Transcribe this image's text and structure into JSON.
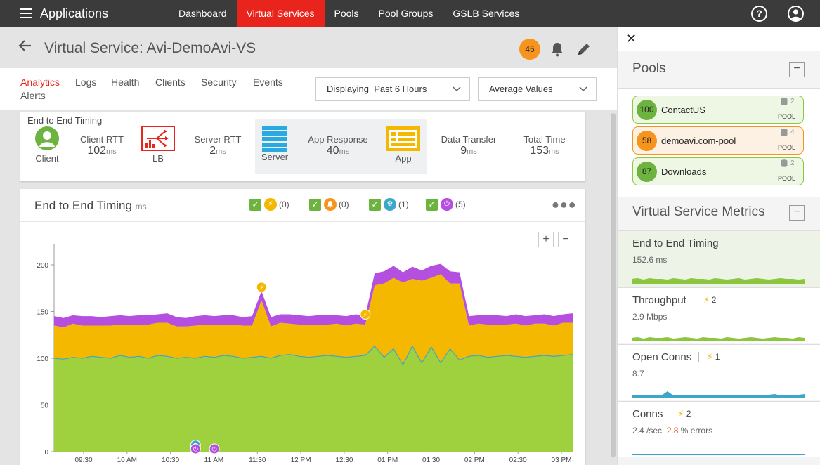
{
  "topbar": {
    "app_title": "Applications",
    "nav": [
      "Dashboard",
      "Virtual Services",
      "Pools",
      "Pool Groups",
      "GSLB Services"
    ],
    "active_nav": "Virtual Services",
    "help_icon": "?"
  },
  "header": {
    "title": "Virtual Service: Avi-DemoAvi-VS",
    "alert_count": "45"
  },
  "tabs": [
    "Analytics",
    "Logs",
    "Health",
    "Clients",
    "Security",
    "Events",
    "Alerts"
  ],
  "active_tab": "Analytics",
  "filters": {
    "time_range": "Displaying  Past 6 Hours",
    "value_mode": "Average Values"
  },
  "timing": {
    "label": "End to End Timing",
    "client": "Client",
    "client_rtt_label": "Client RTT",
    "client_rtt_value": "102",
    "lb": "LB",
    "server_rtt_label": "Server RTT",
    "server_rtt_value": "2",
    "server": "Server",
    "app_response_label": "App Response",
    "app_response_value": "40",
    "app": "App",
    "data_transfer_label": "Data Transfer",
    "data_transfer_value": "9",
    "total_time_label": "Total Time",
    "total_time_value": "153",
    "unit": "ms"
  },
  "chart_card": {
    "title": "End to End Timing",
    "unit": "ms",
    "legend": [
      {
        "icon": "bolt-icon",
        "count": "(0)",
        "color": "#f5b800"
      },
      {
        "icon": "bell-icon",
        "count": "(0)",
        "color": "#f7941d"
      },
      {
        "icon": "gear-icon",
        "count": "(1)",
        "color": "#3da7c9"
      },
      {
        "icon": "power-icon",
        "count": "(5)",
        "color": "#b44fe0"
      }
    ],
    "zoom_in": "+",
    "zoom_out": "−"
  },
  "chart_data": {
    "type": "area",
    "stacked": true,
    "yticks": [
      0,
      50,
      100,
      150,
      200
    ],
    "ylim": [
      0,
      200
    ],
    "x_tick_labels": [
      "09:30",
      "10 AM",
      "10:30",
      "11 AM",
      "11:30",
      "12 PM",
      "12:30",
      "01 PM",
      "01:30",
      "02 PM",
      "02:30",
      "03 PM"
    ],
    "series": [
      {
        "color": "#9fd13e",
        "values": [
          100,
          99,
          101,
          100,
          102,
          101,
          100,
          103,
          101,
          102,
          100,
          103,
          102,
          100,
          101,
          100,
          102,
          101,
          103,
          102,
          100,
          101,
          102,
          100,
          103,
          104,
          102,
          101,
          102,
          103,
          102,
          101,
          102,
          103,
          113,
          101,
          110,
          93,
          113,
          95,
          112,
          95,
          110,
          98,
          102,
          103,
          101,
          102,
          103,
          102,
          101,
          102,
          103,
          102,
          103,
          104
        ]
      },
      {
        "color": "#f5b800",
        "values": [
          35,
          34,
          36,
          35,
          33,
          34,
          35,
          33,
          35,
          34,
          36,
          35,
          36,
          34,
          33,
          35,
          34,
          35,
          33,
          34,
          35,
          34,
          60,
          34,
          35,
          33,
          34,
          35,
          34,
          33,
          35,
          34,
          35,
          33,
          65,
          79,
          76,
          88,
          72,
          88,
          74,
          95,
          70,
          82,
          33,
          34,
          35,
          34,
          33,
          35,
          34,
          35,
          34,
          33,
          35,
          34
        ]
      },
      {
        "color": "#b44fe0",
        "values": [
          10,
          10,
          9,
          10,
          10,
          9,
          10,
          10,
          9,
          10,
          10,
          9,
          10,
          10,
          9,
          10,
          10,
          9,
          10,
          10,
          9,
          10,
          10,
          10,
          9,
          10,
          10,
          9,
          10,
          10,
          9,
          10,
          10,
          9,
          13,
          13,
          13,
          11,
          13,
          11,
          13,
          11,
          13,
          12,
          10,
          9,
          10,
          10,
          9,
          10,
          10,
          9,
          10,
          10,
          9,
          10
        ]
      }
    ],
    "annotations": [
      {
        "icon": "bolt-icon",
        "x_index": 22,
        "y": 176
      },
      {
        "icon": "bolt-icon",
        "x_index": 33,
        "y": 147
      },
      {
        "icon": "gear-icon",
        "x_index": 15,
        "y": 7
      },
      {
        "icon": "power-icon",
        "x_index": 15,
        "y": 3
      },
      {
        "icon": "power-icon",
        "x_index": 17,
        "y": 3
      }
    ]
  },
  "right_panel": {
    "pools_title": "Pools",
    "pools": [
      {
        "score": "100",
        "name": "ContactUS",
        "count": "2",
        "label": "POOL",
        "bg": "#eef6e4",
        "border": "#8cc63f",
        "score_color": "#6db33f"
      },
      {
        "score": "58",
        "name": "demoavi.com-pool",
        "count": "4",
        "label": "POOL",
        "bg": "#fdf1e4",
        "border": "#f7941d",
        "score_color": "#f7941d"
      },
      {
        "score": "87",
        "name": "Downloads",
        "count": "2",
        "label": "POOL",
        "bg": "#eef6e4",
        "border": "#8cc63f",
        "score_color": "#6db33f"
      }
    ],
    "metrics_title": "Virtual Service Metrics",
    "metrics": [
      {
        "name": "End to End Timing",
        "value": "152.6",
        "unit": "ms",
        "alerts": "",
        "spark_color": "#8cc63f"
      },
      {
        "name": "Throughput",
        "value": "2.9",
        "unit": "Mbps",
        "alerts": "2",
        "spark_color": "#8cc63f"
      },
      {
        "name": "Open Conns",
        "value": "8.7",
        "unit": "",
        "alerts": "1",
        "spark_color": "#3da7c9"
      },
      {
        "name": "Conns",
        "value": "2.4",
        "unit": "/sec",
        "alerts": "2",
        "errors": "2.8",
        "errors_label": "% errors",
        "spark_color": "#3da7c9"
      }
    ]
  }
}
